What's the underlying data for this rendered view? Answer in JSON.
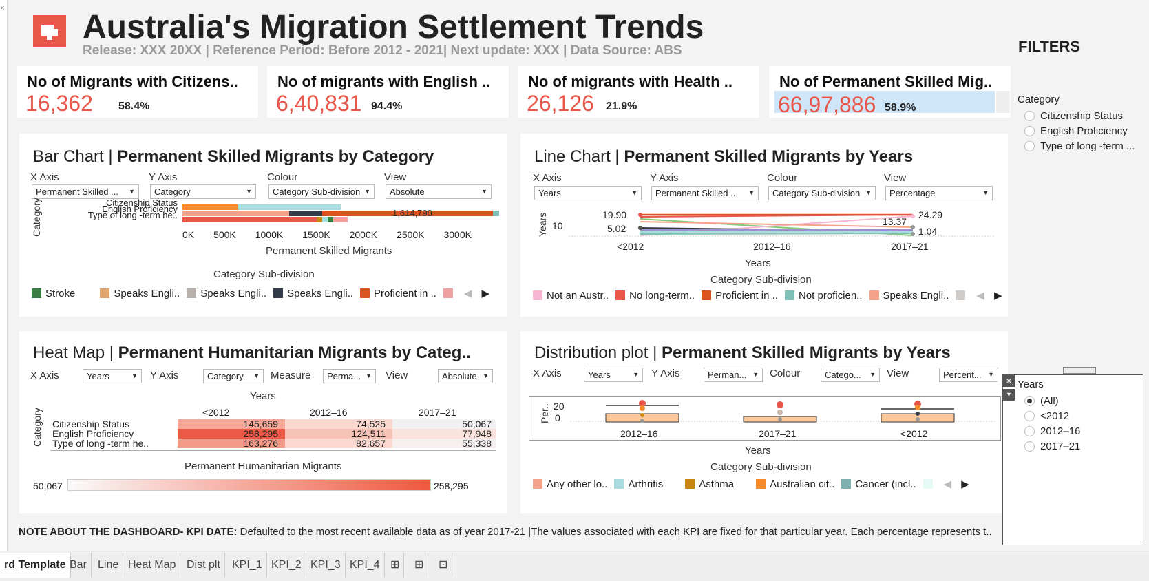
{
  "header": {
    "title": "Australia's Migration Settlement Trends",
    "subtitle": "Release: XXX 20XX | Reference Period: Before 2012 - 2021| Next update: XXX | Data Source: ABS"
  },
  "kpis": [
    {
      "title": "No of Migrants with Citizens..",
      "value": "16,362",
      "pct": "58.4%"
    },
    {
      "title": "No of migrants with English ..",
      "value": "6,40,831",
      "pct": "94.4%"
    },
    {
      "title": "No of migrants with Health ..",
      "value": "26,126",
      "pct": "21.9%"
    },
    {
      "title": "No of Permanent Skilled Mig..",
      "value": "66,97,886",
      "pct": "58.9%"
    }
  ],
  "bar": {
    "title_a": "Bar Chart | ",
    "title_b": "Permanent Skilled Migrants by Category",
    "ctrls": [
      {
        "label": "X Axis",
        "value": "Permanent Skilled ..."
      },
      {
        "label": "Y Axis",
        "value": "Category"
      },
      {
        "label": "Colour",
        "value": "Category Sub-division"
      },
      {
        "label": "View",
        "value": "Absolute"
      }
    ],
    "ylabel": "Category",
    "xlabel": "Permanent Skilled Migrants",
    "legend_title": "Category Sub-division",
    "legend": [
      {
        "name": "Stroke",
        "color": "#3a7d44"
      },
      {
        "name": "Speaks Engli..",
        "color": "#e0a36a"
      },
      {
        "name": "Speaks Engli..",
        "color": "#b8b0ad"
      },
      {
        "name": "Speaks Engli..",
        "color": "#333a48"
      },
      {
        "name": "Proficient in ..",
        "color": "#d9541e"
      },
      {
        "name": "",
        "color": "#f0a0a0"
      }
    ]
  },
  "line": {
    "title_a": "Line Chart | ",
    "title_b": "Permanent Skilled Migrants by Years",
    "ctrls": [
      {
        "label": "X Axis",
        "value": "Years"
      },
      {
        "label": "Y Axis",
        "value": "Permanent Skilled ..."
      },
      {
        "label": "Colour",
        "value": "Category Sub-division"
      },
      {
        "label": "View",
        "value": "Percentage"
      }
    ],
    "ylabel": "Years",
    "ytick": "10",
    "xlabel": "Years",
    "legend_title": "Category Sub-division",
    "legend": [
      {
        "name": "Not an Austr..",
        "color": "#f7b6d2"
      },
      {
        "name": "No long-term..",
        "color": "#e8574a"
      },
      {
        "name": "Proficient in ..",
        "color": "#d9541e"
      },
      {
        "name": "Not proficien..",
        "color": "#7fbfb5"
      },
      {
        "name": "Speaks Engli..",
        "color": "#f4a38a"
      },
      {
        "name": "",
        "color": "#d0ccc9"
      }
    ],
    "labels": [
      "19.90",
      "5.02",
      "13.37",
      "24.29",
      "1.04"
    ]
  },
  "heat": {
    "title_a": "Heat Map | ",
    "title_b": "Permanent Humanitarian Migrants by Categ..",
    "ctrls": [
      {
        "label": "X Axis",
        "value": "Years"
      },
      {
        "label": "Y Axis",
        "value": "Category"
      },
      {
        "label": "Measure",
        "value": "Perma..."
      },
      {
        "label": "View",
        "value": "Absolute"
      }
    ],
    "col_title": "Years",
    "ylabel": "Category",
    "measure_label": "Permanent Humanitarian Migrants",
    "min": "50,067",
    "max": "258,295"
  },
  "dist": {
    "title_a": "Distribution plot | ",
    "title_b": "Permanent Skilled Migrants by Years",
    "ctrls": [
      {
        "label": "X Axis",
        "value": "Years"
      },
      {
        "label": "Y Axis",
        "value": "Perman..."
      },
      {
        "label": "Colour",
        "value": "Catego..."
      },
      {
        "label": "View",
        "value": "Percent..."
      }
    ],
    "ylabel": "Per..",
    "yticks": [
      "20",
      "0"
    ],
    "xlabel": "Years",
    "legend_title": "Category Sub-division",
    "categories": [
      "2012–16",
      "2017–21",
      "<2012"
    ],
    "legend": [
      {
        "name": "Any other lo..",
        "color": "#f4a38a"
      },
      {
        "name": "Arthritis",
        "color": "#a8dce0"
      },
      {
        "name": "Asthma",
        "color": "#c8860d"
      },
      {
        "name": "Australian cit..",
        "color": "#f58b2d"
      },
      {
        "name": "Cancer (incl..",
        "color": "#7fb0b0"
      },
      {
        "name": "",
        "color": "#e6fbf5"
      }
    ]
  },
  "filters": {
    "heading": "FILTERS",
    "category_label": "Category",
    "category_options": [
      "Citizenship Status",
      "English Proficiency",
      "Type of long -term ..."
    ],
    "years_label": "Years",
    "years_options": [
      "(All)",
      "<2012",
      "2012–16",
      "2017–21"
    ]
  },
  "note": {
    "bold": "NOTE ABOUT THE DASHBOARD- KPI DATE:",
    "text": " Defaulted to the most recent available data as of year 2017-21 |The values associated with each KPI are fixed for that particular year. Each percentage represents t.."
  },
  "tabs": [
    "rd Template",
    "Bar",
    "Line",
    "Heat Map",
    "Dist plt",
    "KPI_1",
    "KPI_2",
    "KPI_3",
    "KPI_4"
  ],
  "chart_data": [
    {
      "type": "bar",
      "title": "Permanent Skilled Migrants by Category",
      "categories": [
        "Citizenship Status",
        "English Proficiency",
        "Type of long -term he.."
      ],
      "xlabel": "Permanent Skilled Migrants",
      "ylabel": "Category",
      "xticks": [
        "0K",
        "500K",
        "1000K",
        "1500K",
        "2000K",
        "2500K",
        "3000K"
      ],
      "annotations": [
        "1,614,790"
      ]
    },
    {
      "type": "line",
      "title": "Permanent Skilled Migrants by Years",
      "x": [
        "<2012",
        "2012–16",
        "2017–21"
      ],
      "ylabel": "Years",
      "xlabel": "Years"
    },
    {
      "type": "heatmap",
      "title": "Permanent Humanitarian Migrants by Categ..",
      "columns": [
        "<2012",
        "2012–16",
        "2017–21"
      ],
      "rows": [
        "Citizenship Status",
        "English Proficiency",
        "Type of long -term he.."
      ],
      "values": [
        [
          "145,659",
          "74,525",
          "50,067"
        ],
        [
          "258,295",
          "124,511",
          "77,948"
        ],
        [
          "163,276",
          "82,657",
          "55,338"
        ]
      ]
    },
    {
      "type": "scatter",
      "title": "Permanent Skilled Migrants by Years",
      "categories": [
        "2012–16",
        "2017–21",
        "<2012"
      ]
    }
  ]
}
